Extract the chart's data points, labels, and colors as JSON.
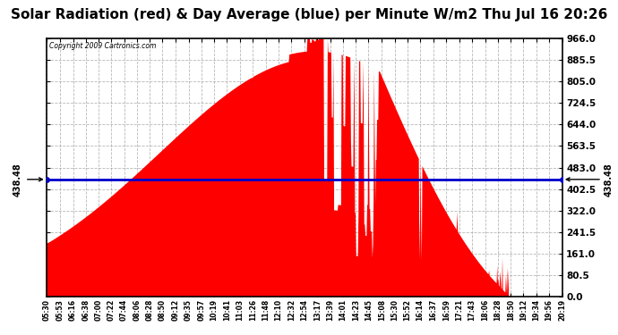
{
  "title": "Solar Radiation (red) & Day Average (blue) per Minute W/m2 Thu Jul 16 20:26",
  "copyright": "Copyright 2009 Cartronics.com",
  "day_average": 438.48,
  "ymin": 0.0,
  "ymax": 966.0,
  "yticks": [
    0.0,
    80.5,
    161.0,
    241.5,
    322.0,
    402.5,
    483.0,
    563.5,
    644.0,
    724.5,
    805.0,
    885.5,
    966.0
  ],
  "fill_color": "#FF0000",
  "line_color": "#0000CC",
  "background_color": "#FFFFFF",
  "grid_color": "#999999",
  "x_labels": [
    "05:30",
    "05:53",
    "06:16",
    "06:38",
    "07:00",
    "07:22",
    "07:44",
    "08:06",
    "08:28",
    "08:50",
    "09:12",
    "09:35",
    "09:57",
    "10:19",
    "10:41",
    "11:03",
    "11:26",
    "11:48",
    "12:10",
    "12:32",
    "12:54",
    "13:17",
    "13:39",
    "14:01",
    "14:23",
    "14:45",
    "15:08",
    "15:30",
    "15:52",
    "16:14",
    "16:37",
    "16:59",
    "17:21",
    "17:43",
    "18:06",
    "18:28",
    "18:50",
    "19:12",
    "19:34",
    "19:56",
    "20:19"
  ]
}
